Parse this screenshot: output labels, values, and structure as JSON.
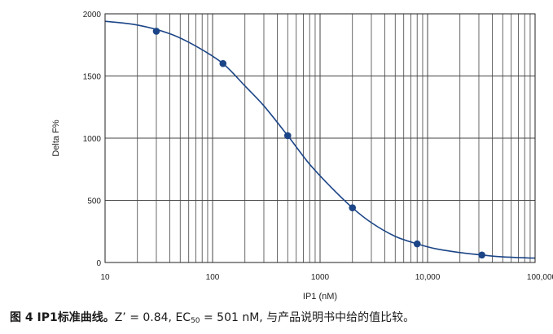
{
  "chart_data": {
    "type": "scatter",
    "title": "",
    "xlabel": "IP1 (nM)",
    "ylabel": "Delta F%",
    "x_scale": "log",
    "xlim": [
      10,
      100000
    ],
    "ylim": [
      0,
      2000
    ],
    "x_tick_values": [
      10,
      100,
      1000,
      10000,
      100000
    ],
    "x_tick_labels": [
      "10",
      "100",
      "1000",
      "10,000",
      "100,000"
    ],
    "y_tick_values": [
      0,
      500,
      1000,
      1500,
      2000
    ],
    "y_tick_labels": [
      "0",
      "500",
      "1000",
      "1500",
      "2000"
    ],
    "grid": true,
    "legend": "none",
    "line_color": "#1c4587",
    "marker_color": "#1c4587",
    "series": [
      {
        "x": [
          30,
          125,
          500,
          2000,
          8000,
          32000
        ],
        "y": [
          1860,
          1600,
          1020,
          440,
          150,
          60
        ]
      }
    ],
    "fit_curve": {
      "x": [
        10,
        20,
        40,
        70,
        125,
        200,
        300,
        500,
        800,
        1250,
        2000,
        3000,
        5000,
        8000,
        12000,
        20000,
        32000,
        50000,
        100000
      ],
      "y": [
        1940,
        1910,
        1840,
        1740,
        1600,
        1420,
        1260,
        1020,
        790,
        610,
        440,
        320,
        210,
        150,
        110,
        80,
        60,
        45,
        35
      ]
    }
  },
  "caption": {
    "lead": "图 4 IP1标准曲线。",
    "z": "Z’ = 0.84, EC",
    "ec_sub": "50",
    "rest": " = 501 nM, 与产品说明书中给的值比较。"
  }
}
